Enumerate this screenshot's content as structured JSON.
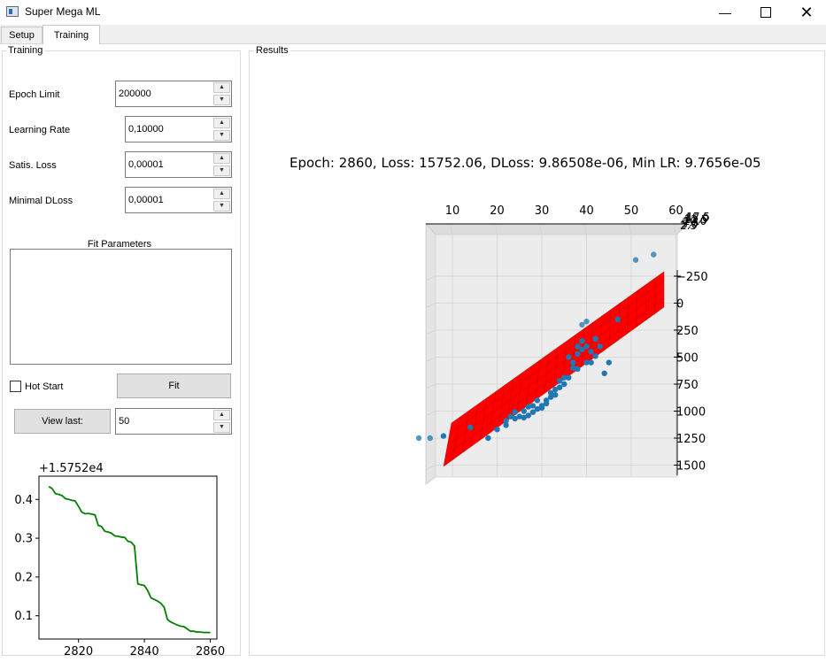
{
  "window": {
    "title": "Super Mega ML"
  },
  "tabs": [
    {
      "label": "Setup"
    },
    {
      "label": "Training",
      "active": true
    }
  ],
  "training_panel": {
    "group_title": "Training",
    "fields": [
      {
        "label": "Epoch Limit",
        "value": "200000"
      },
      {
        "label": "Learning Rate",
        "value": "0,10000"
      },
      {
        "label": "Satis. Loss",
        "value": "0,00001"
      },
      {
        "label": "Minimal DLoss",
        "value": "0,00001"
      }
    ],
    "fit_parameters_label": "Fit Parameters",
    "fit_parameters_text": "",
    "hot_start_label": "Hot Start",
    "hot_start_checked": false,
    "fit_button": "Fit",
    "view_last_button": "View last:",
    "view_last_value": "50"
  },
  "results_panel": {
    "group_title": "Results"
  },
  "loss_chart": {
    "offset_label": "+1.5752e4",
    "line_color": "#008000",
    "x_ticks": [
      "2820",
      "2840",
      "2860"
    ],
    "y_ticks": [
      "0.4",
      "0.3",
      "0.2",
      "0.1"
    ]
  },
  "plot3d": {
    "status_text": "Epoch: 2860, Loss: 15752.06, DLoss: 9.86508e-06, Min LR: 9.7656e-05",
    "x_ticks": [
      "10",
      "20",
      "30",
      "40",
      "50",
      "60"
    ],
    "z_ticks": [
      "1500",
      "1250",
      "1000",
      "750",
      "500",
      "250",
      "0",
      "−250"
    ],
    "y_ticks_overlap": [
      "2.5",
      "5.0",
      "7.5",
      "10.0",
      "12.5",
      "15.0",
      "17.5"
    ],
    "point_color": "#1f77b4",
    "plane_color": "#ff0000"
  },
  "chart_data": [
    {
      "type": "line",
      "title": "",
      "xlabel": "",
      "ylabel": "",
      "offset": "+1.5752e4",
      "xlim": [
        2808,
        2862
      ],
      "ylim": [
        0.04,
        0.46
      ],
      "x_ticks": [
        2820,
        2840,
        2860
      ],
      "y_ticks": [
        0.1,
        0.2,
        0.3,
        0.4
      ],
      "series": [
        {
          "x": [
            2811,
            2812,
            2813,
            2814,
            2815,
            2816,
            2817,
            2818,
            2819,
            2820,
            2821,
            2822,
            2823,
            2824,
            2825,
            2826,
            2827,
            2828,
            2829,
            2830,
            2831,
            2832,
            2833,
            2834,
            2835,
            2836,
            2837,
            2838,
            2839,
            2840,
            2841,
            2842,
            2843,
            2844,
            2845,
            2846,
            2847,
            2848,
            2849,
            2850,
            2851,
            2852,
            2853,
            2854,
            2855,
            2856,
            2857,
            2858,
            2859,
            2860
          ],
          "y": [
            0.433,
            0.428,
            0.415,
            0.413,
            0.41,
            0.402,
            0.4,
            0.398,
            0.396,
            0.382,
            0.367,
            0.363,
            0.364,
            0.362,
            0.36,
            0.333,
            0.33,
            0.318,
            0.316,
            0.313,
            0.306,
            0.305,
            0.303,
            0.302,
            0.292,
            0.29,
            0.28,
            0.182,
            0.18,
            0.178,
            0.165,
            0.146,
            0.142,
            0.138,
            0.132,
            0.122,
            0.09,
            0.084,
            0.08,
            0.076,
            0.073,
            0.072,
            0.066,
            0.06,
            0.06,
            0.058,
            0.058,
            0.057,
            0.057,
            0.057
          ]
        }
      ]
    },
    {
      "type": "scatter",
      "title": "Epoch: 2860, Loss: 15752.06, DLoss: 9.86508e-06, Min LR: 9.7656e-05",
      "xlim": [
        5,
        62
      ],
      "zlim": [
        -300,
        1600
      ],
      "x_ticks": [
        10,
        20,
        30,
        40,
        50,
        60
      ],
      "z_ticks": [
        -250,
        0,
        250,
        500,
        750,
        1000,
        1250,
        1500
      ],
      "y_ticks": [
        2.5,
        5.0,
        7.5,
        10.0,
        12.5,
        15.0,
        17.5
      ],
      "series": [
        {
          "name": "",
          "x": [
            2.5,
            5,
            8,
            14,
            18,
            20,
            22,
            22,
            23,
            24,
            24,
            25,
            26,
            26,
            27,
            27,
            28,
            28,
            29,
            29,
            30,
            30,
            31,
            31,
            32,
            32,
            33,
            33,
            34,
            34,
            35,
            35,
            36,
            36,
            37,
            37,
            38,
            38,
            38,
            39,
            39,
            39,
            40,
            40,
            40,
            41,
            41,
            42,
            42,
            43,
            44,
            45,
            47,
            51,
            55
          ],
          "z": [
            0,
            0,
            20,
            100,
            0,
            80,
            120,
            160,
            200,
            180,
            240,
            200,
            250,
            190,
            210,
            290,
            240,
            300,
            270,
            350,
            280,
            300,
            350,
            320,
            380,
            420,
            400,
            450,
            470,
            530,
            500,
            560,
            560,
            750,
            650,
            700,
            640,
            780,
            850,
            820,
            900,
            1050,
            700,
            850,
            1080,
            700,
            800,
            760,
            920,
            850,
            600,
            700,
            1100,
            1650,
            1700
          ]
        }
      ]
    }
  ]
}
